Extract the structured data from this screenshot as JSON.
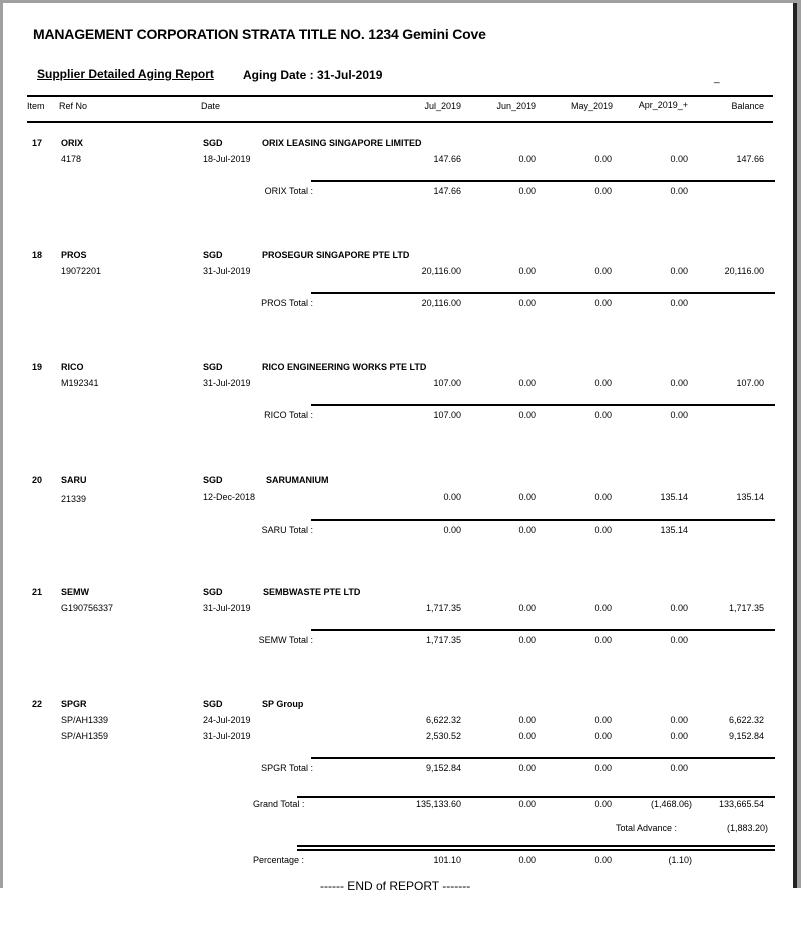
{
  "report": {
    "title": "MANAGEMENT CORPORATION STRATA TITLE NO. 1234 Gemini Cove",
    "subtitle": "Supplier Detailed Aging Report",
    "aging_date_label": "Aging Date :  31-Jul-2019",
    "corner_mark": "_"
  },
  "columns": {
    "item": "Item",
    "ref_no": "Ref No",
    "date": "Date",
    "jul": "Jul_2019",
    "jun": "Jun_2019",
    "may": "May_2019",
    "apr": "Apr_2019_+",
    "balance": "Balance"
  },
  "groups": [
    {
      "item": "17",
      "code": "ORIX",
      "currency": "SGD",
      "name": "ORIX LEASING SINGAPORE LIMITED",
      "rows": [
        {
          "ref": "4178",
          "date": "18-Jul-2019",
          "jul": "147.66",
          "jun": "0.00",
          "may": "0.00",
          "apr": "0.00",
          "balance": "147.66"
        }
      ],
      "total": {
        "label": "ORIX Total :",
        "jul": "147.66",
        "jun": "0.00",
        "may": "0.00",
        "apr": "0.00"
      }
    },
    {
      "item": "18",
      "code": "PROS",
      "currency": "SGD",
      "name": "PROSEGUR SINGAPORE PTE LTD",
      "rows": [
        {
          "ref": "19072201",
          "date": "31-Jul-2019",
          "jul": "20,116.00",
          "jun": "0.00",
          "may": "0.00",
          "apr": "0.00",
          "balance": "20,116.00"
        }
      ],
      "total": {
        "label": "PROS Total :",
        "jul": "20,116.00",
        "jun": "0.00",
        "may": "0.00",
        "apr": "0.00"
      }
    },
    {
      "item": "19",
      "code": "RICO",
      "currency": "SGD",
      "name": "RICO ENGINEERING WORKS PTE LTD",
      "rows": [
        {
          "ref": "M192341",
          "date": "31-Jul-2019",
          "jul": "107.00",
          "jun": "0.00",
          "may": "0.00",
          "apr": "0.00",
          "balance": "107.00"
        }
      ],
      "total": {
        "label": "RICO Total :",
        "jul": "107.00",
        "jun": "0.00",
        "may": "0.00",
        "apr": "0.00"
      }
    },
    {
      "item": "20",
      "code": "SARU",
      "currency": "SGD",
      "name": "SARUMANIUM",
      "rows": [
        {
          "ref": "21339",
          "date": "12-Dec-2018",
          "jul": "0.00",
          "jun": "0.00",
          "may": "0.00",
          "apr": "135.14",
          "balance": "135.14"
        }
      ],
      "total": {
        "label": "SARU Total :",
        "jul": "0.00",
        "jun": "0.00",
        "may": "0.00",
        "apr": "135.14"
      }
    },
    {
      "item": "21",
      "code": "SEMW",
      "currency": "SGD",
      "name": "SEMBWASTE PTE LTD",
      "rows": [
        {
          "ref": "G190756337",
          "date": "31-Jul-2019",
          "jul": "1,717.35",
          "jun": "0.00",
          "may": "0.00",
          "apr": "0.00",
          "balance": "1,717.35"
        }
      ],
      "total": {
        "label": "SEMW Total :",
        "jul": "1,717.35",
        "jun": "0.00",
        "may": "0.00",
        "apr": "0.00"
      }
    },
    {
      "item": "22",
      "code": "SPGR",
      "currency": "SGD",
      "name": "SP Group",
      "rows": [
        {
          "ref": "SP/AH1339",
          "date": "24-Jul-2019",
          "jul": "6,622.32",
          "jun": "0.00",
          "may": "0.00",
          "apr": "0.00",
          "balance": "6,622.32"
        },
        {
          "ref": "SP/AH1359",
          "date": "31-Jul-2019",
          "jul": "2,530.52",
          "jun": "0.00",
          "may": "0.00",
          "apr": "0.00",
          "balance": "9,152.84"
        }
      ],
      "total": {
        "label": "SPGR Total :",
        "jul": "9,152.84",
        "jun": "0.00",
        "may": "0.00",
        "apr": "0.00"
      }
    }
  ],
  "grand_total": {
    "label": "Grand Total  :",
    "jul": "135,133.60",
    "jun": "0.00",
    "may": "0.00",
    "apr": "(1,468.06)",
    "balance": "133,665.54"
  },
  "total_advance": {
    "label": "Total Advance :",
    "value": "(1,883.20)"
  },
  "percentage": {
    "label": "Percentage  :",
    "jul": "101.10",
    "jun": "0.00",
    "may": "0.00",
    "apr": "(1.10)"
  },
  "end_label": "------ END of REPORT -------"
}
